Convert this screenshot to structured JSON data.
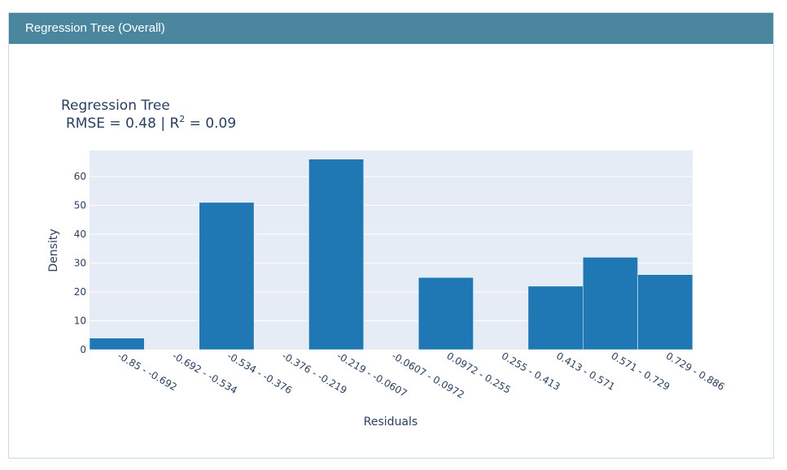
{
  "panel": {
    "header_title": "Regression Tree (Overall)"
  },
  "colors": {
    "header_bg": "#4a869d",
    "plot_bg": "#e5ecf6",
    "bar": "#1f77b4",
    "text": "#2a3f5f"
  },
  "chart_data": {
    "type": "bar",
    "title": "Regression Tree",
    "subtitle_prefix": "RMSE = 0.48 | R",
    "subtitle_sup": "2",
    "subtitle_suffix": " = 0.09",
    "xlabel": "Residuals",
    "ylabel": "Density",
    "ylim": [
      0,
      69
    ],
    "yticks": [
      0,
      10,
      20,
      30,
      40,
      50,
      60
    ],
    "grid": true,
    "categories": [
      "-0.85 - -0.692",
      "-0.692 - -0.534",
      "-0.534 - -0.376",
      "-0.376 - -0.219",
      "-0.219 - -0.0607",
      "-0.0607 - 0.0972",
      "0.0972 - 0.255",
      "0.255 - 0.413",
      "0.413 - 0.571",
      "0.571 - 0.729",
      "0.729 - 0.886"
    ],
    "values": [
      4,
      0,
      51,
      0,
      66,
      0,
      25,
      0,
      22,
      32,
      26
    ]
  }
}
